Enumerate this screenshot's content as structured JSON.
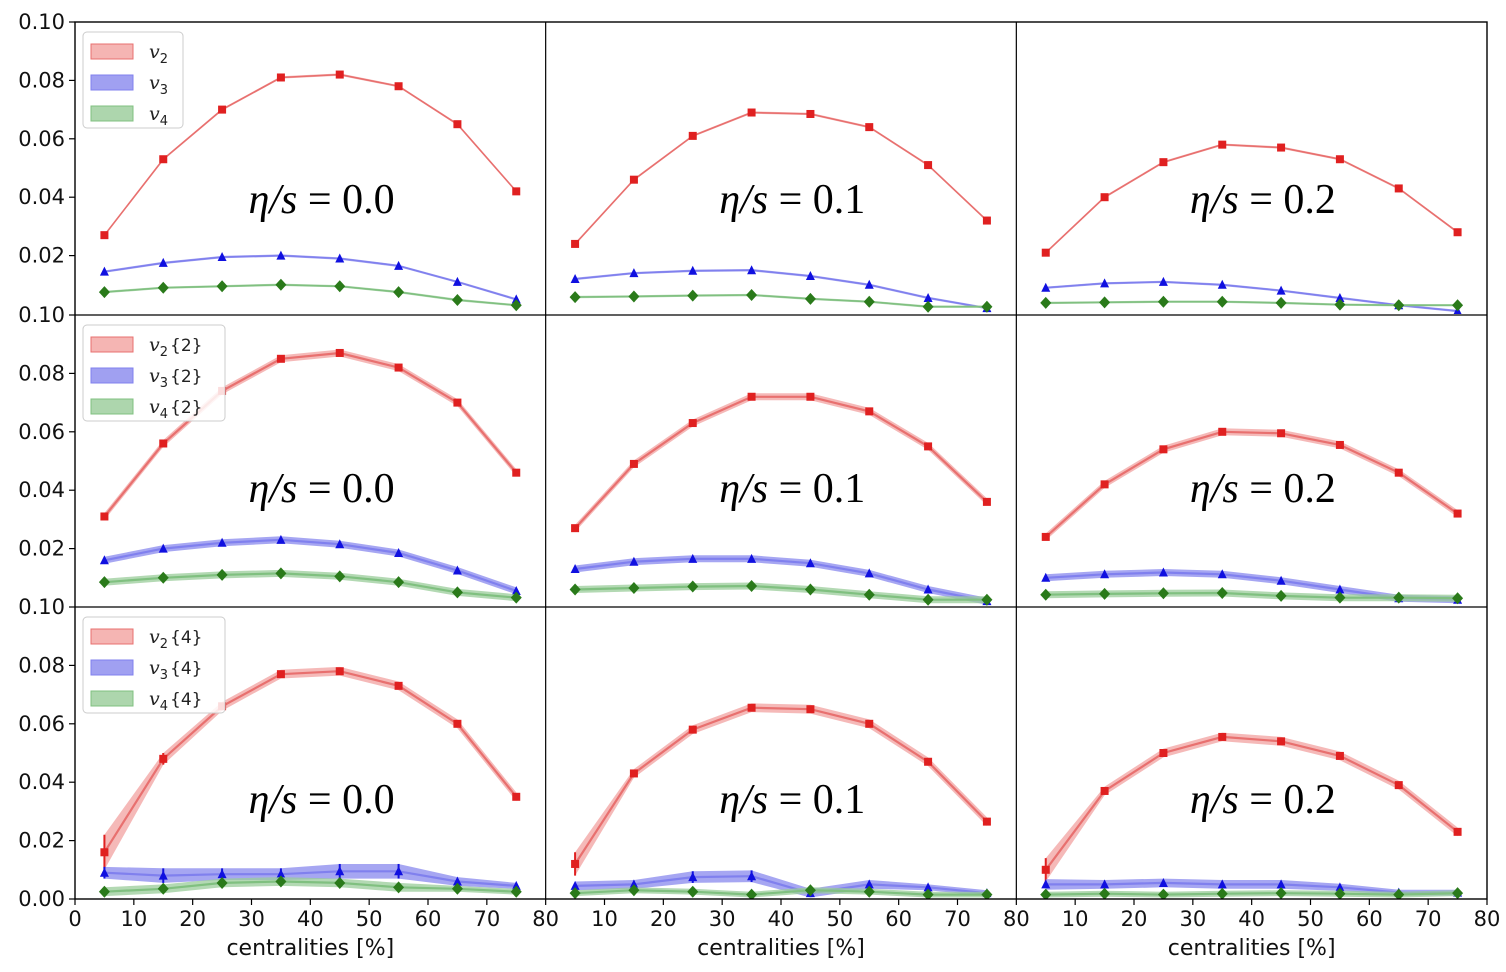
{
  "chart_data": {
    "type": "line",
    "grid": false,
    "rows": 3,
    "cols": 3,
    "xlabel": "centralities [%]",
    "xticks": [
      "0",
      "10",
      "20",
      "30",
      "40",
      "50",
      "60",
      "70",
      "80"
    ],
    "xlim": [
      0,
      80
    ],
    "ylim": [
      0,
      0.1
    ],
    "row_yticks": [
      [
        "0.10",
        "0.08",
        "0.06",
        "0.04",
        "0.02"
      ],
      [
        "0.10",
        "0.08",
        "0.06",
        "0.04",
        "0.02"
      ],
      [
        "0.10",
        "0.08",
        "0.06",
        "0.04",
        "0.02",
        "0.00"
      ]
    ],
    "row_legends": [
      [
        {
          "sym": "v",
          "sub": "2",
          "suffix": ""
        },
        {
          "sym": "v",
          "sub": "3",
          "suffix": ""
        },
        {
          "sym": "v",
          "sub": "4",
          "suffix": ""
        }
      ],
      [
        {
          "sym": "v",
          "sub": "2",
          "suffix": "{2}"
        },
        {
          "sym": "v",
          "sub": "3",
          "suffix": "{2}"
        },
        {
          "sym": "v",
          "sub": "4",
          "suffix": "{2}"
        }
      ],
      [
        {
          "sym": "v",
          "sub": "2",
          "suffix": "{4}"
        },
        {
          "sym": "v",
          "sub": "3",
          "suffix": "{4}"
        },
        {
          "sym": "v",
          "sub": "4",
          "suffix": "{4}"
        }
      ]
    ],
    "col_labels": [
      {
        "lhs": "η/s",
        "rhs": "= 0.0"
      },
      {
        "lhs": "η/s",
        "rhs": "= 0.1"
      },
      {
        "lhs": "η/s",
        "rhs": "= 0.2"
      }
    ],
    "x": [
      5,
      15,
      25,
      35,
      45,
      55,
      65,
      75
    ],
    "colors": {
      "v2_line": "#e8706f",
      "v2_band": "#f2a2a0",
      "v2_marker": "#e02020",
      "v3_line": "#8080ee",
      "v3_band": "#8888ee",
      "v3_marker": "#1010e0",
      "v4_line": "#80c080",
      "v4_band": "#99cc99",
      "v4_marker": "#2a7a1a",
      "axis": "#000000"
    },
    "panels": [
      [
        {
          "v2": [
            0.027,
            0.053,
            0.07,
            0.081,
            0.082,
            0.078,
            0.065,
            0.042
          ],
          "v3": [
            0.0145,
            0.0175,
            0.0195,
            0.02,
            0.019,
            0.0165,
            0.011,
            0.005
          ],
          "v4": [
            0.0075,
            0.009,
            0.0095,
            0.01,
            0.0095,
            0.0075,
            0.0048,
            0.003
          ]
        },
        {
          "v2": [
            0.024,
            0.046,
            0.061,
            0.069,
            0.0685,
            0.064,
            0.051,
            0.032
          ],
          "v3": [
            0.012,
            0.014,
            0.0148,
            0.015,
            0.013,
            0.01,
            0.0055,
            0.002
          ],
          "v4": [
            0.0058,
            0.006,
            0.0063,
            0.0065,
            0.0052,
            0.0042,
            0.0025,
            0.0025
          ]
        },
        {
          "v2": [
            0.021,
            0.04,
            0.052,
            0.058,
            0.057,
            0.053,
            0.043,
            0.028
          ],
          "v3": [
            0.009,
            0.0105,
            0.011,
            0.01,
            0.008,
            0.0055,
            0.003,
            0.001
          ],
          "v4": [
            0.0038,
            0.004,
            0.0042,
            0.0042,
            0.0038,
            0.0032,
            0.003,
            0.003
          ]
        }
      ],
      [
        {
          "v2": [
            0.031,
            0.056,
            0.074,
            0.085,
            0.087,
            0.082,
            0.07,
            0.046
          ],
          "v3": [
            0.016,
            0.02,
            0.022,
            0.023,
            0.0215,
            0.0185,
            0.0125,
            0.0055
          ],
          "v4": [
            0.0085,
            0.01,
            0.011,
            0.0115,
            0.0105,
            0.0085,
            0.005,
            0.0032
          ]
        },
        {
          "v2": [
            0.027,
            0.049,
            0.063,
            0.072,
            0.072,
            0.067,
            0.055,
            0.036
          ],
          "v3": [
            0.013,
            0.0155,
            0.0165,
            0.0165,
            0.015,
            0.0115,
            0.006,
            0.002
          ],
          "v4": [
            0.006,
            0.0065,
            0.007,
            0.0072,
            0.006,
            0.0042,
            0.0025,
            0.0025
          ]
        },
        {
          "v2": [
            0.024,
            0.042,
            0.054,
            0.06,
            0.0595,
            0.0555,
            0.046,
            0.032
          ],
          "v3": [
            0.01,
            0.0112,
            0.0118,
            0.0112,
            0.009,
            0.006,
            0.003,
            0.0025
          ],
          "v4": [
            0.0042,
            0.0045,
            0.0047,
            0.0048,
            0.0038,
            0.0032,
            0.0032,
            0.003
          ]
        }
      ],
      [
        {
          "v2": [
            0.016,
            0.048,
            0.066,
            0.077,
            0.078,
            0.073,
            0.06,
            0.035
          ],
          "v3": [
            0.009,
            0.008,
            0.0085,
            0.0085,
            0.0095,
            0.0095,
            0.006,
            0.0045
          ],
          "v4": [
            0.0025,
            0.0035,
            0.0055,
            0.006,
            0.0055,
            0.004,
            0.0035,
            0.0025
          ],
          "v2_band": [
            0.006,
            0.002,
            0.0015,
            0.0015,
            0.0015,
            0.0015,
            0.0015,
            0.0015
          ],
          "v3_band": [
            0.002,
            0.0025,
            0.002,
            0.002,
            0.0025,
            0.0025,
            0.0015,
            0.001
          ],
          "v4_band": [
            0.0015,
            0.0015,
            0.0015,
            0.0015,
            0.0015,
            0.0015,
            0.001,
            0.001
          ]
        },
        {
          "v2": [
            0.012,
            0.043,
            0.058,
            0.0655,
            0.065,
            0.06,
            0.047,
            0.0265
          ],
          "v3": [
            0.0045,
            0.005,
            0.0075,
            0.0078,
            0.002,
            0.005,
            0.004,
            0.002
          ],
          "v4": [
            0.002,
            0.003,
            0.0025,
            0.0015,
            0.003,
            0.0025,
            0.0015,
            0.0015
          ],
          "v2_band": [
            0.004,
            0.0015,
            0.0015,
            0.0015,
            0.0015,
            0.0015,
            0.0015,
            0.0015
          ],
          "v3_band": [
            0.0015,
            0.0015,
            0.002,
            0.002,
            0.0015,
            0.0015,
            0.001,
            0.001
          ],
          "v4_band": [
            0.001,
            0.001,
            0.001,
            0.001,
            0.001,
            0.001,
            0.001,
            0.001
          ]
        },
        {
          "v2": [
            0.01,
            0.037,
            0.05,
            0.0555,
            0.054,
            0.049,
            0.039,
            0.023
          ],
          "v3": [
            0.005,
            0.005,
            0.0055,
            0.005,
            0.005,
            0.004,
            0.0022,
            0.0022
          ],
          "v4": [
            0.0015,
            0.0018,
            0.0015,
            0.0018,
            0.002,
            0.0018,
            0.0015,
            0.002
          ],
          "v2_band": [
            0.004,
            0.0015,
            0.0015,
            0.0015,
            0.0015,
            0.0015,
            0.0015,
            0.0015
          ],
          "v3_band": [
            0.0018,
            0.0015,
            0.0015,
            0.0015,
            0.0015,
            0.0012,
            0.001,
            0.001
          ],
          "v4_band": [
            0.001,
            0.001,
            0.001,
            0.001,
            0.001,
            0.001,
            0.001,
            0.001
          ]
        }
      ]
    ]
  }
}
